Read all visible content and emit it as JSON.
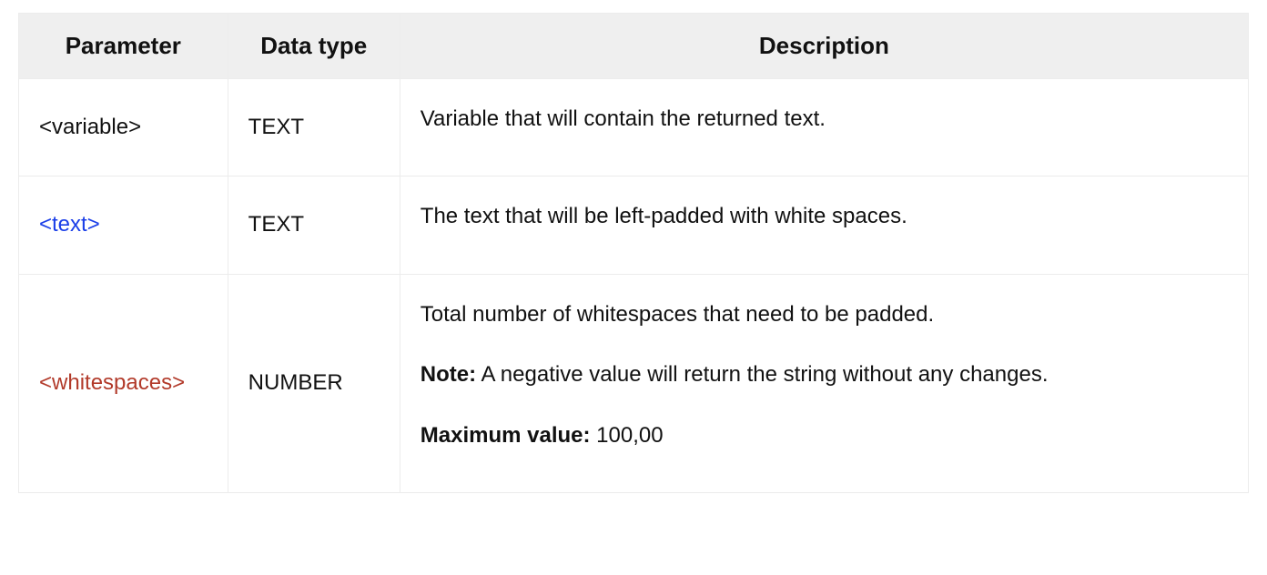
{
  "table": {
    "type": "table",
    "columns": [
      {
        "key": "parameter",
        "label": "Parameter",
        "width_pct": 17,
        "align": "left",
        "header_align": "center",
        "header_fontsize": 26,
        "header_weight": 600
      },
      {
        "key": "datatype",
        "label": "Data type",
        "width_pct": 14,
        "align": "left",
        "header_align": "center",
        "header_fontsize": 26,
        "header_weight": 600
      },
      {
        "key": "description",
        "label": "Description",
        "width_pct": 69,
        "align": "left",
        "header_align": "center",
        "header_fontsize": 26,
        "header_weight": 600
      }
    ],
    "rows": [
      {
        "parameter": {
          "text": "<variable>",
          "color": "#111111"
        },
        "datatype": "TEXT",
        "description": [
          {
            "kind": "plain",
            "text": "Variable that will contain the returned text."
          }
        ]
      },
      {
        "parameter": {
          "text": "<text>",
          "color": "#1a3ee8"
        },
        "datatype": "TEXT",
        "description": [
          {
            "kind": "plain",
            "text": "The text that will be left-padded with white spaces."
          }
        ]
      },
      {
        "parameter": {
          "text": "<whitespaces>",
          "color": "#b23a2a"
        },
        "datatype": "NUMBER",
        "description": [
          {
            "kind": "plain",
            "text": "Total number of whitespaces that need to be padded."
          },
          {
            "kind": "labeled",
            "label": "Note:",
            "text": " A negative value will return the string without any changes."
          },
          {
            "kind": "labeled",
            "label": "Maximum value:",
            "text": " 100,00"
          }
        ]
      }
    ],
    "style": {
      "header_bg": "#efefef",
      "border_color": "#ececec",
      "row_bg": "#ffffff",
      "cell_fontsize": 24,
      "text_color": "#111111",
      "link_color": "#1a3ee8",
      "warn_color": "#b23a2a",
      "bold_weight": 600
    }
  }
}
